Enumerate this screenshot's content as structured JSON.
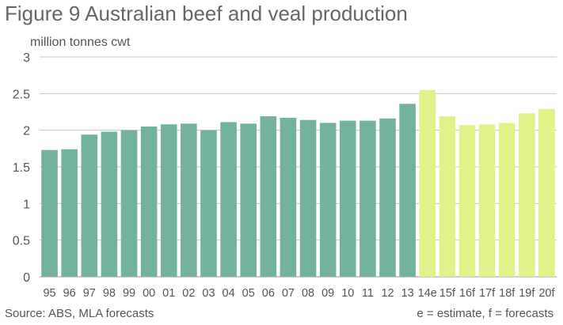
{
  "chart_data": {
    "type": "bar",
    "title": "Figure 9 Australian beef and veal production",
    "ylabel": "million tonnes cwt",
    "ylim": [
      0,
      3
    ],
    "yticks": [
      0,
      0.5,
      1,
      1.5,
      2,
      2.5,
      3
    ],
    "ytick_labels": [
      "0",
      "0.5",
      "1",
      "1.5",
      "2",
      "2.5",
      "3"
    ],
    "grid": true,
    "categories": [
      "95",
      "96",
      "97",
      "98",
      "99",
      "00",
      "01",
      "02",
      "03",
      "04",
      "05",
      "06",
      "07",
      "08",
      "09",
      "10",
      "11",
      "12",
      "13",
      "14e",
      "15f",
      "16f",
      "17f",
      "18f",
      "19f",
      "20f"
    ],
    "values": [
      1.73,
      1.74,
      1.94,
      1.98,
      2.0,
      2.05,
      2.08,
      2.09,
      2.0,
      2.11,
      2.09,
      2.19,
      2.17,
      2.14,
      2.1,
      2.13,
      2.13,
      2.16,
      2.36,
      2.55,
      2.19,
      2.07,
      2.08,
      2.1,
      2.23,
      2.29
    ],
    "bar_types": [
      "actual",
      "actual",
      "actual",
      "actual",
      "actual",
      "actual",
      "actual",
      "actual",
      "actual",
      "actual",
      "actual",
      "actual",
      "actual",
      "actual",
      "actual",
      "actual",
      "actual",
      "actual",
      "actual",
      "estimate",
      "forecast",
      "forecast",
      "forecast",
      "forecast",
      "forecast",
      "forecast"
    ],
    "colors": {
      "actual": "#72b29e",
      "estimate": "#e1f28a",
      "forecast": "#e1f28a",
      "grid": "#c8c8c8",
      "axis": "#999999"
    },
    "source": "Source: ABS, MLA forecasts",
    "note": "e = estimate, f = forecasts"
  }
}
